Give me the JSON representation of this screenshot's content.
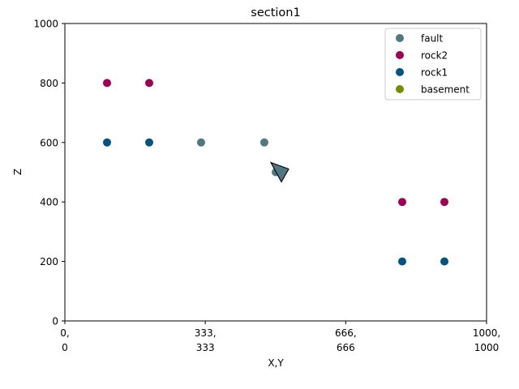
{
  "chart_data": {
    "type": "scatter",
    "title": "section1",
    "xlabel": "X,Y",
    "ylabel": "Z",
    "xlim": [
      0,
      1000
    ],
    "ylim": [
      0,
      1000
    ],
    "grid": false,
    "legend_position": "top-right",
    "x_ticks": [
      {
        "value": 0,
        "line1": "0,",
        "line2": "0"
      },
      {
        "value": 333,
        "line1": "333,",
        "line2": "333"
      },
      {
        "value": 666,
        "line1": "666,",
        "line2": "666"
      },
      {
        "value": 1000,
        "line1": "1000,",
        "line2": "1000"
      }
    ],
    "y_ticks": [
      0,
      200,
      400,
      600,
      800,
      1000
    ],
    "series": [
      {
        "name": "fault",
        "color": "#527682",
        "points": [
          [
            323,
            600
          ],
          [
            473,
            600
          ],
          [
            500,
            500
          ]
        ]
      },
      {
        "name": "rock2",
        "color": "#9f0052",
        "points": [
          [
            100,
            800
          ],
          [
            200,
            800
          ],
          [
            800,
            400
          ],
          [
            900,
            400
          ]
        ]
      },
      {
        "name": "rock1",
        "color": "#015482",
        "points": [
          [
            100,
            600
          ],
          [
            200,
            600
          ],
          [
            800,
            200
          ],
          [
            900,
            200
          ]
        ]
      },
      {
        "name": "basement",
        "color": "#728f02",
        "points": []
      }
    ],
    "orientation_markers": [
      {
        "series": "fault",
        "x": 500,
        "y": 500,
        "icon": "orientation-arrow-icon"
      }
    ]
  }
}
